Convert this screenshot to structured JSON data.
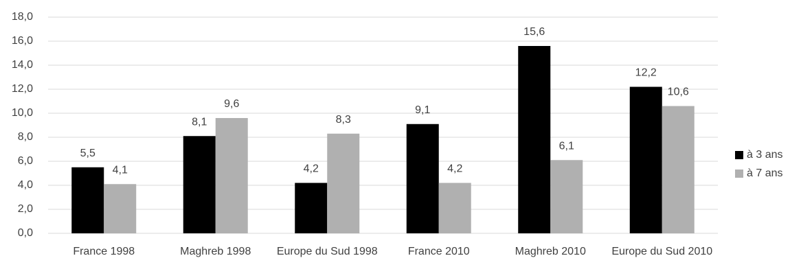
{
  "chart_data": {
    "type": "bar",
    "categories": [
      "France 1998",
      "Maghreb 1998",
      "Europe du Sud 1998",
      "France 2010",
      "Maghreb 2010",
      "Europe du Sud 2010"
    ],
    "series": [
      {
        "name": "à 3 ans",
        "color": "#000000",
        "values": [
          5.5,
          8.1,
          4.2,
          9.1,
          15.6,
          12.2
        ],
        "value_labels": [
          "5,5",
          "8,1",
          "4,2",
          "9,1",
          "15,6",
          "12,2"
        ]
      },
      {
        "name": "à 7 ans",
        "color": "#b0b0b0",
        "values": [
          4.1,
          9.6,
          8.3,
          4.2,
          6.1,
          10.6
        ],
        "value_labels": [
          "4,1",
          "9,6",
          "8,3",
          "4,2",
          "6,1",
          "10,6"
        ]
      }
    ],
    "ylim": [
      0,
      18
    ],
    "yticks": [
      {
        "value": 0,
        "label": "0,0"
      },
      {
        "value": 2,
        "label": "2,0"
      },
      {
        "value": 4,
        "label": "4,0"
      },
      {
        "value": 6,
        "label": "6,0"
      },
      {
        "value": 8,
        "label": "8,0"
      },
      {
        "value": 10,
        "label": "10,0"
      },
      {
        "value": 12,
        "label": "12,0"
      },
      {
        "value": 14,
        "label": "14,0"
      },
      {
        "value": 16,
        "label": "16,0"
      },
      {
        "value": 18,
        "label": "18,0"
      }
    ],
    "grid": true,
    "legend": "right"
  }
}
